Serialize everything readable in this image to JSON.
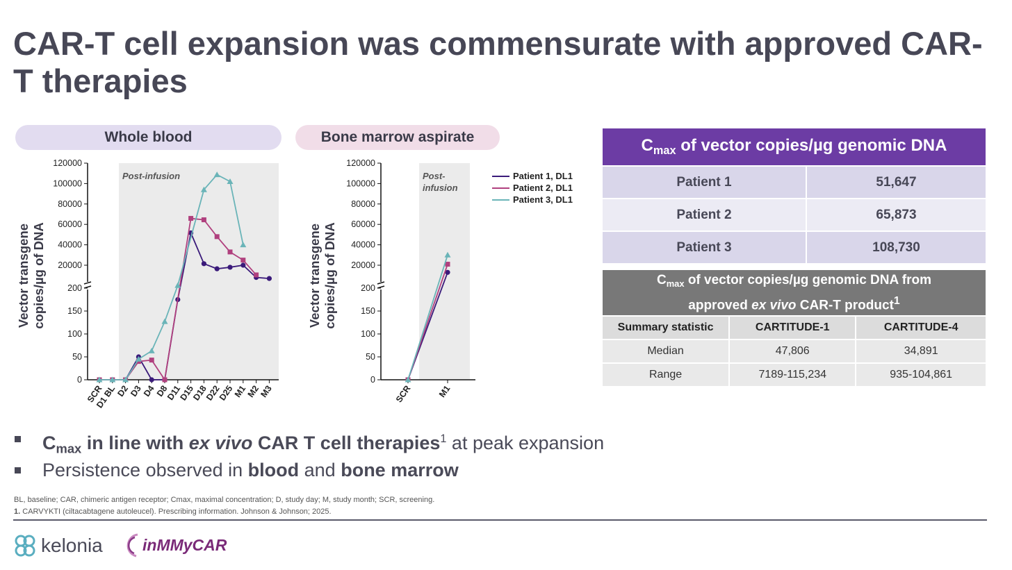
{
  "title": "CAR-T cell expansion was commensurate with approved CAR-T therapies",
  "panels": {
    "whole_blood": "Whole blood",
    "bone_marrow": "Bone marrow aspirate"
  },
  "colors": {
    "patient1": "#3a1a7a",
    "patient2": "#b0407e",
    "patient3": "#6ab4b8",
    "table1_header": "#6c3ca4",
    "table2_header": "#787878"
  },
  "chart_data": [
    {
      "type": "line",
      "title": "Whole blood",
      "ylabel": "Vector transgene copies/µg of DNA",
      "yaxis": "broken: linear 0-200, then 20000-120000",
      "yticks_lower": [
        "0",
        "50",
        "100",
        "150",
        "200"
      ],
      "yticks_upper": [
        "20000",
        "40000",
        "60000",
        "80000",
        "100000",
        "120000"
      ],
      "annotation": "Post-infusion",
      "categories": [
        "SCR",
        "D1 BL",
        "D2",
        "D3",
        "D4",
        "D8",
        "D11",
        "D15",
        "D18",
        "D22",
        "D25",
        "M1",
        "M2",
        "M3"
      ],
      "series": [
        {
          "name": "Patient 1, DL1",
          "values": [
            0,
            0,
            0,
            50,
            0,
            0,
            175,
            51647,
            21500,
            16500,
            18000,
            20000,
            8000,
            7000
          ]
        },
        {
          "name": "Patient 2, DL1",
          "values": [
            0,
            0,
            0,
            40,
            43,
            0,
            null,
            65873,
            64500,
            48000,
            33000,
            25000,
            10500,
            null
          ]
        },
        {
          "name": "Patient 3, DL1",
          "values": [
            0,
            0,
            0,
            45,
            63,
            127,
            215,
            null,
            94000,
            108730,
            102000,
            40000,
            null,
            null
          ]
        }
      ]
    },
    {
      "type": "line",
      "title": "Bone marrow aspirate",
      "ylabel": "Vector transgene copies/µg of DNA",
      "yaxis": "broken: linear 0-200, then 20000-120000",
      "yticks_lower": [
        "0",
        "50",
        "100",
        "150",
        "200"
      ],
      "yticks_upper": [
        "20000",
        "40000",
        "60000",
        "80000",
        "100000",
        "120000"
      ],
      "annotation": "Post-\ninfusion",
      "categories": [
        "SCR",
        "M1"
      ],
      "series": [
        {
          "name": "Patient 1, DL1",
          "values": [
            0,
            13000
          ]
        },
        {
          "name": "Patient 2, DL1",
          "values": [
            0,
            21000
          ]
        },
        {
          "name": "Patient 3, DL1",
          "values": [
            0,
            30000
          ]
        }
      ],
      "legend": [
        "Patient 1, DL1",
        "Patient 2, DL1",
        "Patient 3, DL1"
      ]
    }
  ],
  "table1": {
    "header_c": "C",
    "header_sub": "max",
    "header_rest": " of vector copies/µg genomic DNA",
    "rows": [
      {
        "label": "Patient 1",
        "value": "51,647"
      },
      {
        "label": "Patient 2",
        "value": "65,873"
      },
      {
        "label": "Patient 3",
        "value": "108,730"
      }
    ]
  },
  "table2": {
    "header_c": "C",
    "header_sub": "max",
    "header_line1": " of vector copies/µg genomic DNA from",
    "header_line2a": "approved ",
    "header_line2b": "ex vivo",
    "header_line2c": " CAR-T product",
    "header_sup": "1",
    "columns": [
      "Summary statistic",
      "CARTITUDE-1",
      "CARTITUDE-4"
    ],
    "rows": [
      [
        "Median",
        "47,806",
        "34,891"
      ],
      [
        "Range",
        "7189-115,234",
        "935-104,861"
      ]
    ]
  },
  "bullets": {
    "b1_c": "C",
    "b1_sub": "max",
    "b1_bold": " in line with ",
    "b1_italic": "ex vivo",
    "b1_bold2": " CAR T cell therapies",
    "b1_sup": "1",
    "b1_rest": " at peak expansion",
    "b2_a": "Persistence observed in ",
    "b2_b": "blood",
    "b2_c": " and ",
    "b2_d": "bone marrow"
  },
  "footnotes": {
    "abbrev": "BL, baseline; CAR, chimeric antigen receptor; Cmax, maximal concentration; D, study day; M, study month; SCR, screening.",
    "ref_num": "1.",
    "ref_text": " CARVYKTI (ciltacabtagene autoleucel). Prescribing information. Johnson & Johnson; 2025."
  },
  "logos": {
    "kelonia": "kelonia",
    "inmmycar": "inMMyCAR"
  }
}
